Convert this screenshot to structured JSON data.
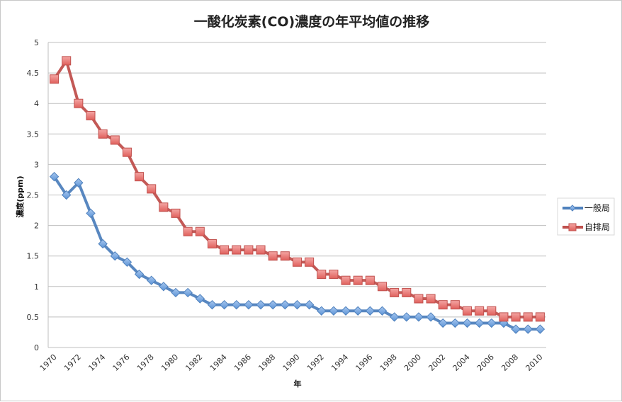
{
  "chart_data": {
    "type": "line",
    "title": "一酸化炭素(CO)濃度の年平均値の推移",
    "xlabel": "年",
    "ylabel": "濃度(ppm)",
    "ylim": [
      0,
      5
    ],
    "yticks": [
      "0",
      "0.5",
      "1",
      "1.5",
      "2",
      "2.5",
      "3",
      "3.5",
      "4",
      "4.5",
      "5"
    ],
    "ytick_values": [
      0,
      0.5,
      1,
      1.5,
      2,
      2.5,
      3,
      3.5,
      4,
      4.5,
      5
    ],
    "xticks": [
      "1970",
      "1972",
      "1974",
      "1976",
      "1978",
      "1980",
      "1982",
      "1984",
      "1986",
      "1988",
      "1990",
      "1992",
      "1994",
      "1996",
      "1998",
      "2000",
      "2002",
      "2004",
      "2006",
      "2008",
      "2010"
    ],
    "grid": true,
    "legend_position": "right",
    "x": [
      1970,
      1971,
      1972,
      1973,
      1974,
      1975,
      1976,
      1977,
      1978,
      1979,
      1980,
      1981,
      1982,
      1983,
      1984,
      1985,
      1986,
      1987,
      1988,
      1989,
      1990,
      1991,
      1992,
      1993,
      1994,
      1995,
      1996,
      1997,
      1998,
      1999,
      2000,
      2001,
      2002,
      2003,
      2004,
      2005,
      2006,
      2007,
      2008,
      2009,
      2010
    ],
    "series": [
      {
        "name": "一般局",
        "color": "#4f81bd",
        "marker": "diamond",
        "values": [
          2.8,
          2.5,
          2.7,
          2.2,
          1.7,
          1.5,
          1.4,
          1.2,
          1.1,
          1.0,
          0.9,
          0.9,
          0.8,
          0.7,
          0.7,
          0.7,
          0.7,
          0.7,
          0.7,
          0.7,
          0.7,
          0.7,
          0.6,
          0.6,
          0.6,
          0.6,
          0.6,
          0.6,
          0.5,
          0.5,
          0.5,
          0.5,
          0.4,
          0.4,
          0.4,
          0.4,
          0.4,
          0.4,
          0.3,
          0.3,
          0.3
        ]
      },
      {
        "name": "自排局",
        "color": "#c0504d",
        "marker": "square",
        "values": [
          4.4,
          4.7,
          4.0,
          3.8,
          3.5,
          3.4,
          3.2,
          2.8,
          2.6,
          2.3,
          2.2,
          1.9,
          1.9,
          1.7,
          1.6,
          1.6,
          1.6,
          1.6,
          1.5,
          1.5,
          1.4,
          1.4,
          1.2,
          1.2,
          1.1,
          1.1,
          1.1,
          1.0,
          0.9,
          0.9,
          0.8,
          0.8,
          0.7,
          0.7,
          0.6,
          0.6,
          0.6,
          0.5,
          0.5,
          0.5,
          0.5
        ]
      }
    ]
  }
}
